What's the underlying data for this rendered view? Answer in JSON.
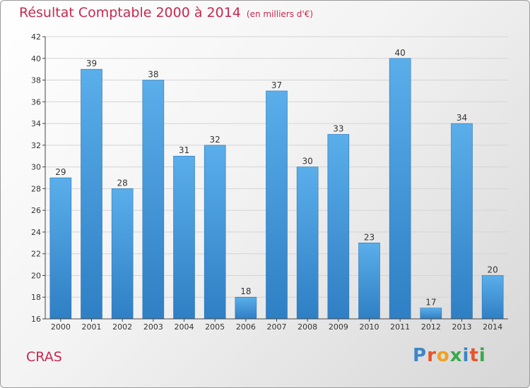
{
  "title": "Résultat Comptable 2000 à 2014",
  "unit": "(en milliers d'€)",
  "commune": "CRAS",
  "logo": {
    "letters": [
      "P",
      "r",
      "o",
      "x",
      "i",
      "t",
      "i"
    ],
    "colors": [
      "#3d86c6",
      "#e8542a",
      "#f0a020",
      "#3aa84a",
      "#3d86c6",
      "#e8542a",
      "#3aa84a"
    ]
  },
  "chart_data": {
    "type": "bar",
    "title": "Résultat Comptable 2000 à 2014",
    "subtitle": "(en milliers d'€)",
    "xlabel": "",
    "ylabel": "",
    "categories": [
      "2000",
      "2001",
      "2002",
      "2003",
      "2004",
      "2005",
      "2006",
      "2007",
      "2008",
      "2009",
      "2010",
      "2011",
      "2012",
      "2013",
      "2014"
    ],
    "values": [
      29,
      39,
      28,
      38,
      31,
      32,
      18,
      37,
      30,
      33,
      23,
      40,
      17,
      34,
      20
    ],
    "ylim": [
      16,
      42
    ],
    "yticks": [
      16,
      18,
      20,
      22,
      24,
      26,
      28,
      30,
      32,
      34,
      36,
      38,
      40,
      42
    ],
    "grid": true,
    "bar_color": "#4a9ee0"
  }
}
